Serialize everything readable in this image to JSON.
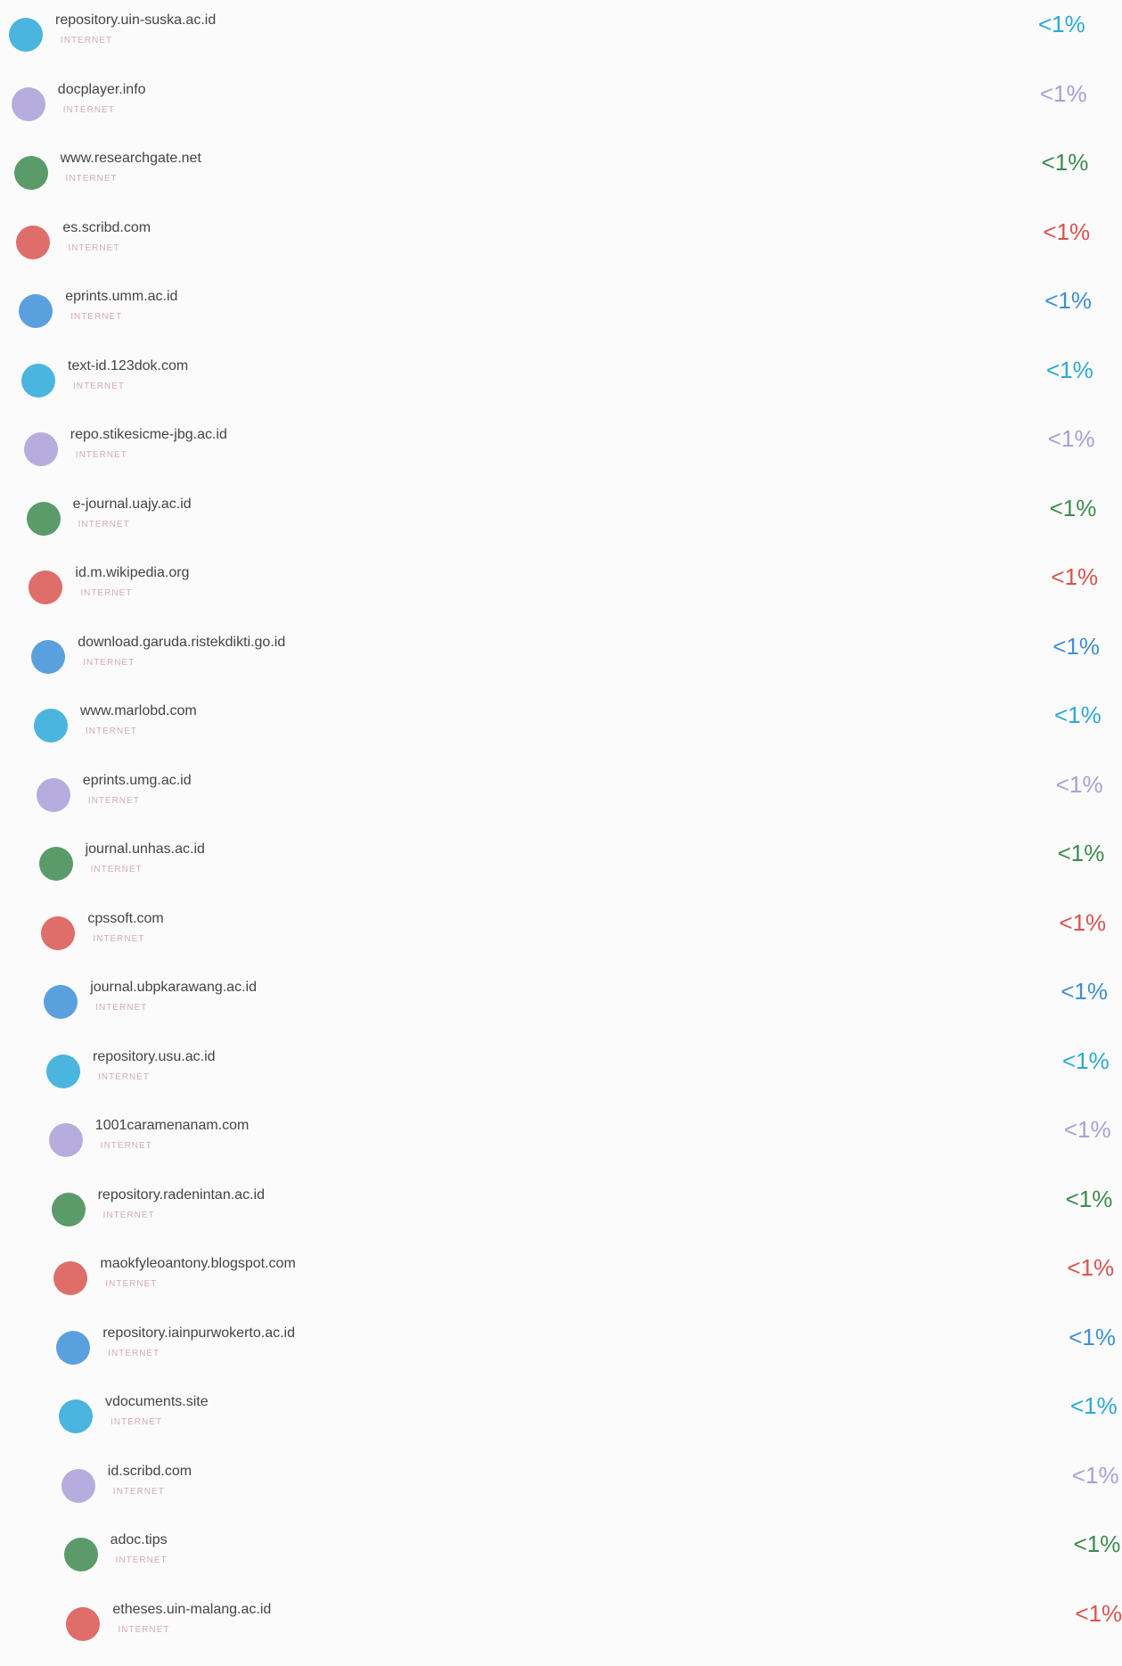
{
  "sources": [
    {
      "name": "repository.uin-suska.ac.id",
      "type": "INTERNET",
      "percent": "<1%",
      "color": "#2aa8d8"
    },
    {
      "name": "docplayer.info",
      "type": "INTERNET",
      "percent": "<1%",
      "color": "#a99fd8"
    },
    {
      "name": "www.researchgate.net",
      "type": "INTERNET",
      "percent": "<1%",
      "color": "#3d8a4f"
    },
    {
      "name": "es.scribd.com",
      "type": "INTERNET",
      "percent": "<1%",
      "color": "#d9534f"
    },
    {
      "name": "eprints.umm.ac.id",
      "type": "INTERNET",
      "percent": "<1%",
      "color": "#3d8fd8"
    },
    {
      "name": "text-id.123dok.com",
      "type": "INTERNET",
      "percent": "<1%",
      "color": "#2aa8d8"
    },
    {
      "name": "repo.stikesicme-jbg.ac.id",
      "type": "INTERNET",
      "percent": "<1%",
      "color": "#a99fd8"
    },
    {
      "name": "e-journal.uajy.ac.id",
      "type": "INTERNET",
      "percent": "<1%",
      "color": "#3d8a4f"
    },
    {
      "name": "id.m.wikipedia.org",
      "type": "INTERNET",
      "percent": "<1%",
      "color": "#d9534f"
    },
    {
      "name": "download.garuda.ristekdikti.go.id",
      "type": "INTERNET",
      "percent": "<1%",
      "color": "#3d8fd8"
    },
    {
      "name": "www.marlobd.com",
      "type": "INTERNET",
      "percent": "<1%",
      "color": "#2aa8d8"
    },
    {
      "name": "eprints.umg.ac.id",
      "type": "INTERNET",
      "percent": "<1%",
      "color": "#a99fd8"
    },
    {
      "name": "journal.unhas.ac.id",
      "type": "INTERNET",
      "percent": "<1%",
      "color": "#3d8a4f"
    },
    {
      "name": "cpssoft.com",
      "type": "INTERNET",
      "percent": "<1%",
      "color": "#d9534f"
    },
    {
      "name": "journal.ubpkarawang.ac.id",
      "type": "INTERNET",
      "percent": "<1%",
      "color": "#3d8fd8"
    },
    {
      "name": "repository.usu.ac.id",
      "type": "INTERNET",
      "percent": "<1%",
      "color": "#2aa8d8"
    },
    {
      "name": "1001caramenanam.com",
      "type": "INTERNET",
      "percent": "<1%",
      "color": "#a99fd8"
    },
    {
      "name": "repository.radenintan.ac.id",
      "type": "INTERNET",
      "percent": "<1%",
      "color": "#3d8a4f"
    },
    {
      "name": "maokfyleoantony.blogspot.com",
      "type": "INTERNET",
      "percent": "<1%",
      "color": "#d9534f"
    },
    {
      "name": "repository.iainpurwokerto.ac.id",
      "type": "INTERNET",
      "percent": "<1%",
      "color": "#3d8fd8"
    },
    {
      "name": "vdocuments.site",
      "type": "INTERNET",
      "percent": "<1%",
      "color": "#2aa8d8"
    },
    {
      "name": "id.scribd.com",
      "type": "INTERNET",
      "percent": "<1%",
      "color": "#a99fd8"
    },
    {
      "name": "adoc.tips",
      "type": "INTERNET",
      "percent": "<1%",
      "color": "#3d8a4f"
    },
    {
      "name": "etheses.uin-malang.ac.id",
      "type": "INTERNET",
      "percent": "<1%",
      "color": "#d9534f"
    }
  ]
}
